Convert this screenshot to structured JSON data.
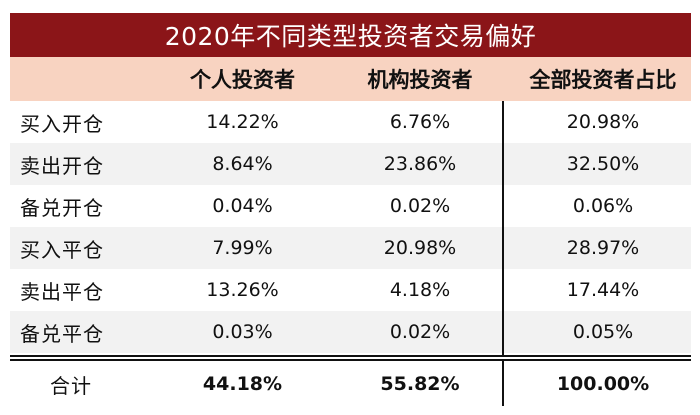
{
  "title": "2020年不同类型投资者交易偏好",
  "headers": [
    "",
    "个人投资者",
    "机构投资者",
    "全部投资者占比"
  ],
  "rows": [
    {
      "label": "买入开仓",
      "individual": "14.22%",
      "institutional": "6.76%",
      "total_share": "20.98%"
    },
    {
      "label": "卖出开仓",
      "individual": "8.64%",
      "institutional": "23.86%",
      "total_share": "32.50%"
    },
    {
      "label": "备兑开仓",
      "individual": "0.04%",
      "institutional": "0.02%",
      "total_share": "0.06%"
    },
    {
      "label": "买入平仓",
      "individual": "7.99%",
      "institutional": "20.98%",
      "total_share": "28.97%"
    },
    {
      "label": "卖出平仓",
      "individual": "13.26%",
      "institutional": "4.18%",
      "total_share": "17.44%"
    },
    {
      "label": "备兑平仓",
      "individual": "0.03%",
      "institutional": "0.02%",
      "total_share": "0.05%"
    }
  ],
  "total_row": {
    "label": "合计",
    "individual": "44.18%",
    "institutional": "55.82%",
    "total_share": "100.00%"
  },
  "colors": {
    "title_bg": "#8b1518",
    "header_bg": "#f8d3c1",
    "stripe_bg": "#f2f2f2"
  }
}
